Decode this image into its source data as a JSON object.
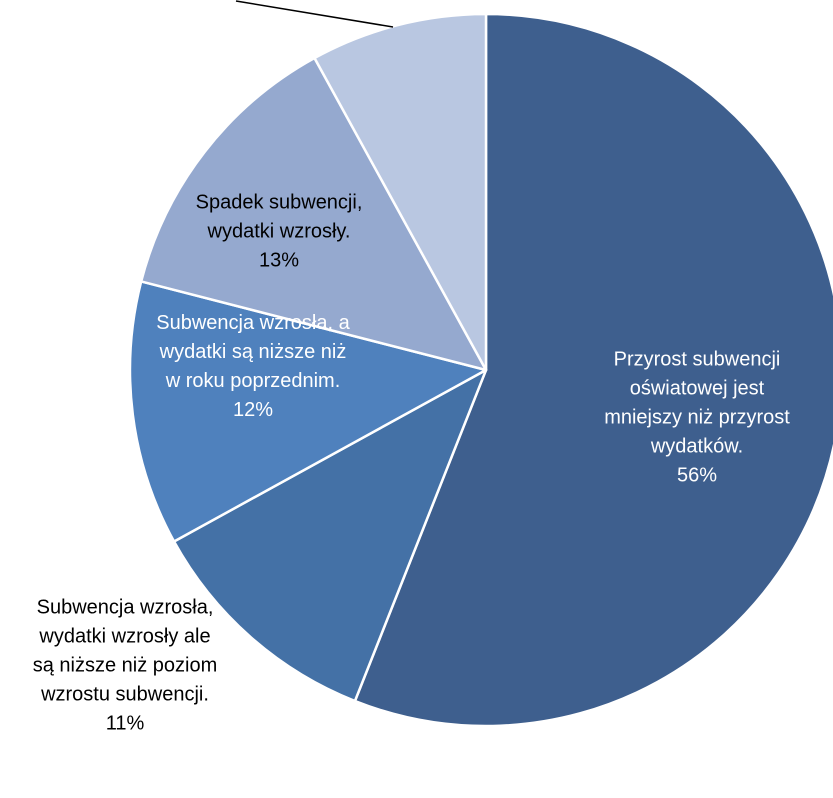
{
  "chart_data": {
    "type": "pie",
    "title": "",
    "slices": [
      {
        "label": "Przyrost subwencji oświatowej jest mniejszy niż przyrost wydatków.",
        "label_lines": [
          "Przyrost subwencji",
          "oświatowej jest",
          "mniejszy niż przyrost",
          "wydatków."
        ],
        "value": 56,
        "value_text": "56%",
        "color": "#3E5F8E",
        "label_color": "#FFFFFF",
        "label_position": "inside"
      },
      {
        "label": "Subwencja wzrosła, wydatki wzrosły ale są niższe niż poziom wzrostu subwencji.",
        "label_lines": [
          "Subwencja wzrosła,",
          "wydatki wzrosły ale",
          "są niższe niż poziom",
          "wzrostu subwencji."
        ],
        "value": 11,
        "value_text": "11%",
        "color": "#4471A6",
        "label_color": "#000000",
        "label_position": "outside"
      },
      {
        "label": "Subwencja wzrosła, a wydatki są niższe niż w roku poprzednim.",
        "label_lines": [
          "Subwencja wzrosła, a",
          "wydatki są niższe niż",
          "w roku poprzednim."
        ],
        "value": 12,
        "value_text": "12%",
        "color": "#4F81BD",
        "label_color": "#FFFFFF",
        "label_position": "inside"
      },
      {
        "label": "Spadek subwencji, wydatki wzrosły.",
        "label_lines": [
          "Spadek subwencji,",
          "wydatki wzrosły."
        ],
        "value": 13,
        "value_text": "13%",
        "color": "#95A9CF",
        "label_color": "#000000",
        "label_position": "inside"
      },
      {
        "label": "",
        "label_lines": [],
        "value": 8,
        "value_text": "",
        "color": "#B9C7E1",
        "label_color": "#000000",
        "label_position": "leader-line"
      }
    ]
  }
}
